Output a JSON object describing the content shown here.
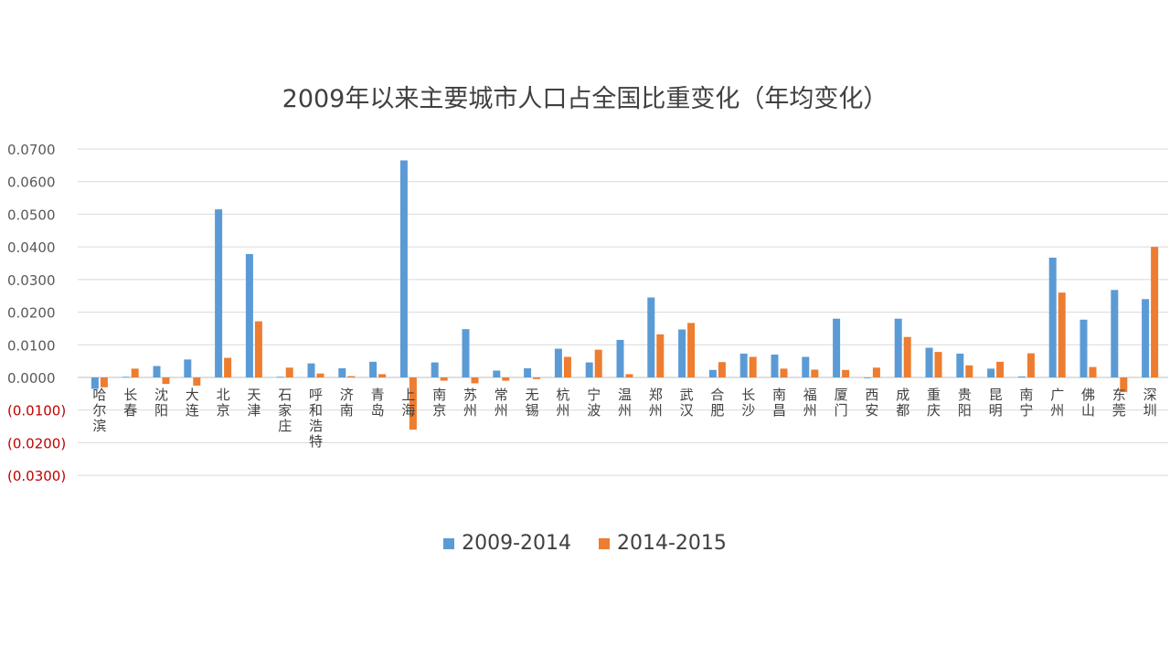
{
  "chart_data": {
    "type": "bar",
    "title": "2009年以来主要城市人口占全国比重变化（年均变化）",
    "xlabel": "",
    "ylabel": "",
    "ylim": [
      -0.03,
      0.07
    ],
    "yticks": [
      {
        "value": 0.07,
        "label": "0.0700"
      },
      {
        "value": 0.06,
        "label": "0.0600"
      },
      {
        "value": 0.05,
        "label": "0.0500"
      },
      {
        "value": 0.04,
        "label": "0.0400"
      },
      {
        "value": 0.03,
        "label": "0.0300"
      },
      {
        "value": 0.02,
        "label": "0.0200"
      },
      {
        "value": 0.01,
        "label": "0.0100"
      },
      {
        "value": 0.0,
        "label": "0.0000"
      },
      {
        "value": -0.01,
        "label": "(0.0100)"
      },
      {
        "value": -0.02,
        "label": "(0.0200)"
      },
      {
        "value": -0.03,
        "label": "(0.0300)"
      }
    ],
    "grid": true,
    "legend_position": "bottom",
    "categories": [
      "哈尔滨",
      "长春",
      "沈阳",
      "大连",
      "北京",
      "天津",
      "石家庄",
      "呼和浩特",
      "济南",
      "青岛",
      "上海",
      "南京",
      "苏州",
      "常州",
      "无锡",
      "杭州",
      "宁波",
      "温州",
      "郑州",
      "武汉",
      "合肥",
      "长沙",
      "南昌",
      "福州",
      "厦门",
      "西安",
      "成都",
      "重庆",
      "贵阳",
      "昆明",
      "南宁",
      "广州",
      "佛山",
      "东莞",
      "深圳"
    ],
    "series": [
      {
        "name": "2009-2014",
        "color": "#5b9bd5",
        "values": [
          -0.0035,
          0.0002,
          0.0035,
          0.0055,
          0.0515,
          0.0378,
          0.0002,
          0.0043,
          0.0028,
          0.0048,
          0.0665,
          0.0046,
          0.0148,
          0.0021,
          0.0028,
          0.0088,
          0.0046,
          0.0115,
          0.0245,
          0.0147,
          0.0023,
          0.0073,
          0.007,
          0.0063,
          0.018,
          0.0,
          0.018,
          0.0091,
          0.0073,
          0.0027,
          0.0003,
          0.0367,
          0.0177,
          0.0268,
          0.024
        ]
      },
      {
        "name": "2014-2015",
        "color": "#ed7d31",
        "values": [
          -0.003,
          0.0027,
          -0.002,
          -0.0025,
          0.006,
          0.0172,
          0.003,
          0.0012,
          0.0004,
          0.001,
          -0.016,
          -0.001,
          -0.0018,
          -0.001,
          -0.0005,
          0.0063,
          0.0085,
          0.001,
          0.0132,
          0.0167,
          0.0047,
          0.0063,
          0.0027,
          0.0024,
          0.0023,
          0.003,
          0.0124,
          0.0078,
          0.0037,
          0.0048,
          0.0074,
          0.026,
          0.0032,
          -0.0045,
          0.04
        ]
      }
    ],
    "negative_label_color": "#c00000",
    "tick_label_color": "#595959",
    "category_label_color": "#404040"
  }
}
